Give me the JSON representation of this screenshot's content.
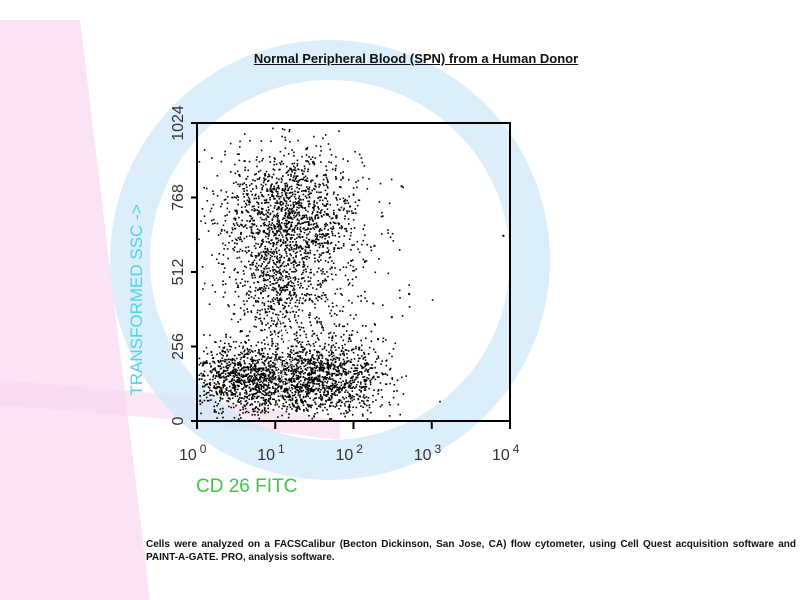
{
  "chart_data": {
    "type": "scatter",
    "title": "Normal Peripheral Blood (SPN) from a Human Donor",
    "xlabel": "CD 26 FITC",
    "ylabel": "TRANSFORMED SSC ->",
    "x_scale": "log",
    "xlim": [
      1,
      10000
    ],
    "ylim": [
      0,
      1024
    ],
    "x_ticks": [
      {
        "value": 1,
        "base": "10",
        "exp": "0"
      },
      {
        "value": 10,
        "base": "10",
        "exp": "1"
      },
      {
        "value": 100,
        "base": "10",
        "exp": "2"
      },
      {
        "value": 1000,
        "base": "10",
        "exp": "3"
      },
      {
        "value": 10000,
        "base": "10",
        "exp": "4"
      }
    ],
    "y_ticks": [
      {
        "value": 0,
        "label": "0"
      },
      {
        "value": 256,
        "label": "256"
      },
      {
        "value": 512,
        "label": "512"
      },
      {
        "value": 768,
        "label": "768"
      },
      {
        "value": 1024,
        "label": "1024"
      }
    ],
    "grid": false,
    "series": [
      {
        "color": "#000000",
        "populations": [
          {
            "x_center": 15,
            "x_spread_decades": 0.45,
            "y_center": 720,
            "y_spread": 110,
            "weight": 0.3
          },
          {
            "x_center": 10,
            "x_spread_decades": 0.25,
            "y_center": 470,
            "y_spread": 90,
            "weight": 0.08
          },
          {
            "x_center": 4,
            "x_spread_decades": 0.4,
            "y_center": 145,
            "y_spread": 60,
            "weight": 0.24
          },
          {
            "x_center": 40,
            "x_spread_decades": 0.4,
            "y_center": 150,
            "y_spread": 60,
            "weight": 0.25
          },
          {
            "x_center": 20,
            "x_spread_decades": 0.55,
            "y_center": 400,
            "y_spread": 180,
            "weight": 0.13
          }
        ],
        "outliers": [
          {
            "x": 400,
            "y": 810
          },
          {
            "x": 8000,
            "y": 640
          },
          {
            "x": 500,
            "y": 440
          },
          {
            "x": 180,
            "y": 605
          },
          {
            "x": 200,
            "y": 285
          },
          {
            "x": 300,
            "y": 360
          }
        ]
      },
      {
        "color": "#ffffff",
        "populations": [
          {
            "x_center": 12,
            "x_spread_decades": 0.06,
            "y_center": 200,
            "y_spread": 120,
            "weight": 1.0
          }
        ]
      }
    ]
  },
  "caption": "Cells were analyzed on a FACSCalibur (Becton Dickinson, San Jose, CA) flow cytometer, using Cell Quest acquisition software and PAINT-A-GATE. PRO, analysis software.",
  "colors": {
    "axis_label_y": "#4fd3e6",
    "axis_label_x": "#44c24a",
    "watermark_pink": "#f7d7ef",
    "watermark_blue": "#d2eaf8"
  }
}
